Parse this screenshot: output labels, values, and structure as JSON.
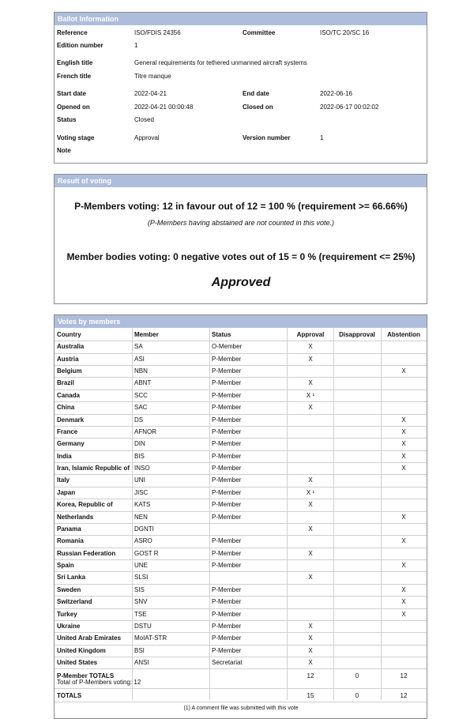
{
  "ballot": {
    "title": "Ballot Information",
    "rows": [
      [
        [
          "Reference",
          "ISO/FDIS 24356"
        ],
        [
          "Committee",
          "ISO/TC 20/SC 16"
        ]
      ],
      [
        [
          "Edition number",
          "1"
        ]
      ],
      [
        [
          "English title",
          "General requirements for tethered unmanned aircraft systems"
        ]
      ],
      [
        [
          "French title",
          "Titre manque"
        ]
      ],
      [
        [
          "Start date",
          "2022-04-21"
        ],
        [
          "End date",
          "2022-06-16"
        ]
      ],
      [
        [
          "Opened on",
          "2022-04-21 00:00:48"
        ],
        [
          "Closed on",
          "2022-06-17 00:02:02"
        ]
      ],
      [
        [
          "Status",
          "Closed"
        ]
      ],
      [
        [
          "Voting stage",
          "Approval"
        ],
        [
          "Version number",
          "1"
        ]
      ],
      [
        [
          "Note"
        ]
      ]
    ]
  },
  "result": {
    "title": "Result of voting",
    "p_members": "P-Members voting: 12 in favour out of 12 = 100 % (requirement >= 66.66%)",
    "p_note": "(P-Members having abstained are not counted in this vote.)",
    "member_bodies": "Member bodies voting: 0 negative votes out of 15 = 0 % (requirement <= 25%)",
    "outcome": "Approved"
  },
  "votes": {
    "title": "Votes by members",
    "columns": [
      "Country",
      "Member",
      "Status",
      "Approval",
      "Disapproval",
      "Abstention"
    ],
    "rows": [
      [
        "Australia",
        "SA",
        "O-Member",
        "X",
        null,
        null
      ],
      [
        "Austria",
        "ASI",
        "P-Member",
        "X",
        null,
        null
      ],
      [
        "Belgium",
        "NBN",
        "P-Member",
        null,
        null,
        "X"
      ],
      [
        "Brazil",
        "ABNT",
        "P-Member",
        "X",
        null,
        null
      ],
      [
        "Canada",
        "SCC",
        "P-Member",
        "X ¹",
        null,
        null
      ],
      [
        "China",
        "SAC",
        "P-Member",
        "X",
        null,
        null
      ],
      [
        "Denmark",
        "DS",
        "P-Member",
        null,
        null,
        "X"
      ],
      [
        "France",
        "AFNOR",
        "P-Member",
        null,
        null,
        "X"
      ],
      [
        "Germany",
        "DIN",
        "P-Member",
        null,
        null,
        "X"
      ],
      [
        "India",
        "BIS",
        "P-Member",
        null,
        null,
        "X"
      ],
      [
        "Iran, Islamic Republic of",
        "INSO",
        "P-Member",
        null,
        null,
        "X"
      ],
      [
        "Italy",
        "UNI",
        "P-Member",
        "X",
        null,
        null
      ],
      [
        "Japan",
        "JISC",
        "P-Member",
        "X ¹",
        null,
        null
      ],
      [
        "Korea, Republic of",
        "KATS",
        "P-Member",
        "X",
        null,
        null
      ],
      [
        "Netherlands",
        "NEN",
        "P-Member",
        null,
        null,
        "X"
      ],
      [
        "Panama",
        "DGNTI",
        null,
        "X",
        null,
        null
      ],
      [
        "Romania",
        "ASRO",
        "P-Member",
        null,
        null,
        "X"
      ],
      [
        "Russian Federation",
        "GOST R",
        "P-Member",
        "X",
        null,
        null
      ],
      [
        "Spain",
        "UNE",
        "P-Member",
        null,
        null,
        "X"
      ],
      [
        "Sri Lanka",
        "SLSI",
        null,
        "X",
        null,
        null
      ],
      [
        "Sweden",
        "SIS",
        "P-Member",
        null,
        null,
        "X"
      ],
      [
        "Switzerland",
        "SNV",
        "P-Member",
        null,
        null,
        "X"
      ],
      [
        "Turkey",
        "TSE",
        "P-Member",
        null,
        null,
        "X"
      ],
      [
        "Ukraine",
        "DSTU",
        "P-Member",
        "X",
        null,
        null
      ],
      [
        "United Arab Emirates",
        "MoIAT-STR",
        "P-Member",
        "X",
        null,
        null
      ],
      [
        "United Kingdom",
        "BSI",
        "P-Member",
        "X",
        null,
        null
      ],
      [
        "United States",
        "ANSI",
        "Secretariat",
        "X",
        null,
        null
      ]
    ],
    "p_totals": {
      "label": "P-Member TOTALS",
      "sub": "Total of P-Members voting: 12",
      "values": [
        12,
        0,
        12
      ]
    },
    "totals": {
      "label": "TOTALS",
      "values": [
        15,
        0,
        12
      ]
    },
    "footnote": "(1) A comment file was submitted with this vote"
  }
}
